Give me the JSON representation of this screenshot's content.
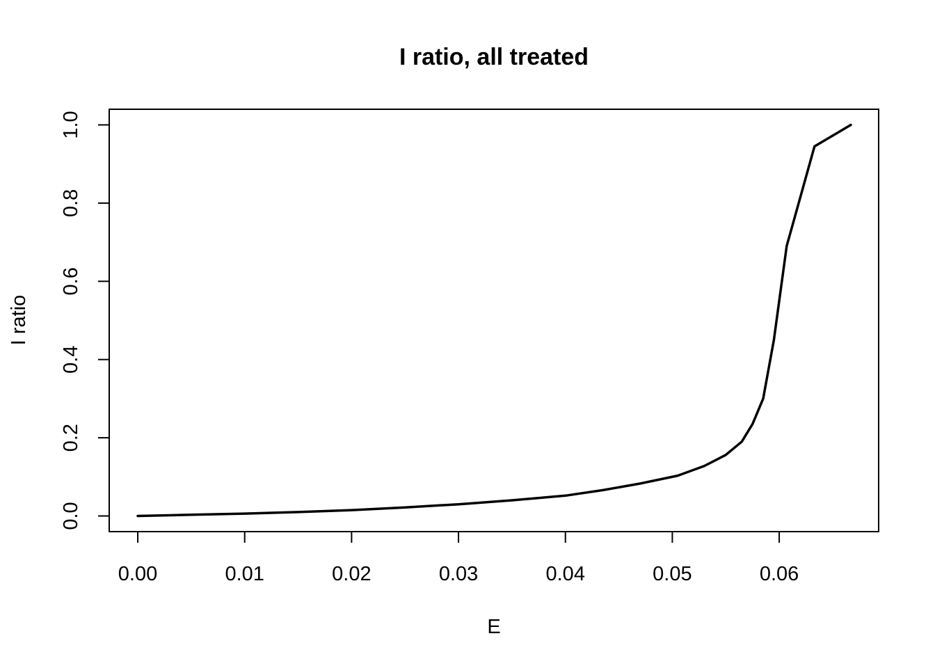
{
  "chart_data": {
    "type": "line",
    "title": "I ratio, all treated",
    "xlabel": "E",
    "ylabel": "I ratio",
    "xlim": [
      -0.00267,
      0.0693
    ],
    "ylim": [
      -0.04,
      1.04
    ],
    "xticks": [
      0.0,
      0.01,
      0.02,
      0.03,
      0.04,
      0.05,
      0.06
    ],
    "xtick_labels": [
      "0.00",
      "0.01",
      "0.02",
      "0.03",
      "0.04",
      "0.05",
      "0.06"
    ],
    "yticks": [
      0.0,
      0.2,
      0.4,
      0.6,
      0.8,
      1.0
    ],
    "ytick_labels": [
      "0.0",
      "0.2",
      "0.4",
      "0.6",
      "0.8",
      "1.0"
    ],
    "grid": false,
    "series": [
      {
        "color": "#000000",
        "x": [
          0.0,
          0.005,
          0.01,
          0.015,
          0.02,
          0.025,
          0.03,
          0.035,
          0.04,
          0.0435,
          0.047,
          0.0505,
          0.053,
          0.055,
          0.0565,
          0.0575,
          0.0585,
          0.0595,
          0.0607,
          0.0633,
          0.0667
        ],
        "y": [
          0.0,
          0.003,
          0.006,
          0.01,
          0.015,
          0.022,
          0.03,
          0.04,
          0.052,
          0.066,
          0.083,
          0.103,
          0.128,
          0.156,
          0.19,
          0.235,
          0.3,
          0.45,
          0.69,
          0.945,
          1.0
        ]
      }
    ]
  }
}
